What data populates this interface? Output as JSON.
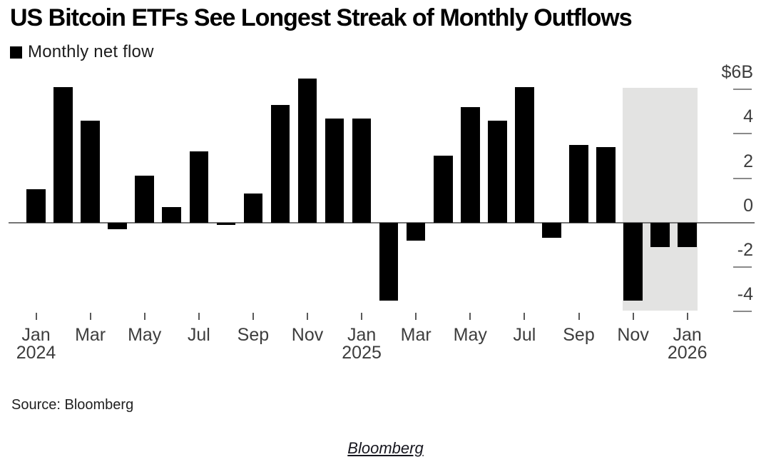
{
  "header": {
    "title": "US Bitcoin ETFs See Longest Streak of Monthly Outflows"
  },
  "legend": {
    "label": "Monthly net flow",
    "swatch_icon": "black-square-icon"
  },
  "source_note": "Source: Bloomberg",
  "caption": "Bloomberg",
  "chart_data": {
    "type": "bar",
    "title": "US Bitcoin ETFs See Longest Streak of Monthly Outflows",
    "unit": "USD billions (net flow)",
    "categories": [
      "Jan 2024",
      "Feb 2024",
      "Mar 2024",
      "Apr 2024",
      "May 2024",
      "Jun 2024",
      "Jul 2024",
      "Aug 2024",
      "Sep 2024",
      "Oct 2024",
      "Nov 2024",
      "Dec 2024",
      "Jan 2025",
      "Feb 2025",
      "Mar 2025",
      "Apr 2025",
      "May 2025",
      "Jun 2025",
      "Jul 2025",
      "Aug 2025",
      "Sep 2025",
      "Oct 2025",
      "Nov 2025",
      "Dec 2025",
      "Jan 2026"
    ],
    "series": [
      {
        "name": "Monthly net flow",
        "values": [
          1.5,
          6.1,
          4.6,
          -0.3,
          2.1,
          0.7,
          3.2,
          -0.1,
          1.3,
          5.3,
          6.5,
          4.7,
          4.7,
          -3.5,
          -0.8,
          3.0,
          5.2,
          4.6,
          6.1,
          -0.7,
          3.5,
          3.4,
          -3.5,
          -1.1,
          -1.1
        ]
      }
    ],
    "bar_color": "#000000",
    "highlight_region": {
      "start_month": "Nov 2025",
      "end_month": "Jan 2026",
      "start_index": 22,
      "end_index": 24,
      "color": "#e3e3e2"
    },
    "y_axis": {
      "side": "right",
      "ylim": [
        -4.8,
        6.8
      ],
      "grid": false,
      "ticks": [
        {
          "value": 6,
          "label": "$6B"
        },
        {
          "value": 4,
          "label": "4"
        },
        {
          "value": 2,
          "label": "2"
        },
        {
          "value": 0,
          "label": "0"
        },
        {
          "value": -2,
          "label": "-2"
        },
        {
          "value": -4,
          "label": "-4"
        }
      ]
    },
    "x_axis": {
      "ticks": [
        {
          "month_index": 0,
          "label": "Jan",
          "year": "2024"
        },
        {
          "month_index": 2,
          "label": "Mar"
        },
        {
          "month_index": 4,
          "label": "May"
        },
        {
          "month_index": 6,
          "label": "Jul"
        },
        {
          "month_index": 8,
          "label": "Sep"
        },
        {
          "month_index": 10,
          "label": "Nov"
        },
        {
          "month_index": 12,
          "label": "Jan",
          "year": "2025"
        },
        {
          "month_index": 14,
          "label": "Mar"
        },
        {
          "month_index": 16,
          "label": "May"
        },
        {
          "month_index": 18,
          "label": "Jul"
        },
        {
          "month_index": 20,
          "label": "Sep"
        },
        {
          "month_index": 22,
          "label": "Nov"
        },
        {
          "month_index": 24,
          "label": "Jan",
          "year": "2026"
        }
      ]
    },
    "legend_position": "top-left"
  }
}
